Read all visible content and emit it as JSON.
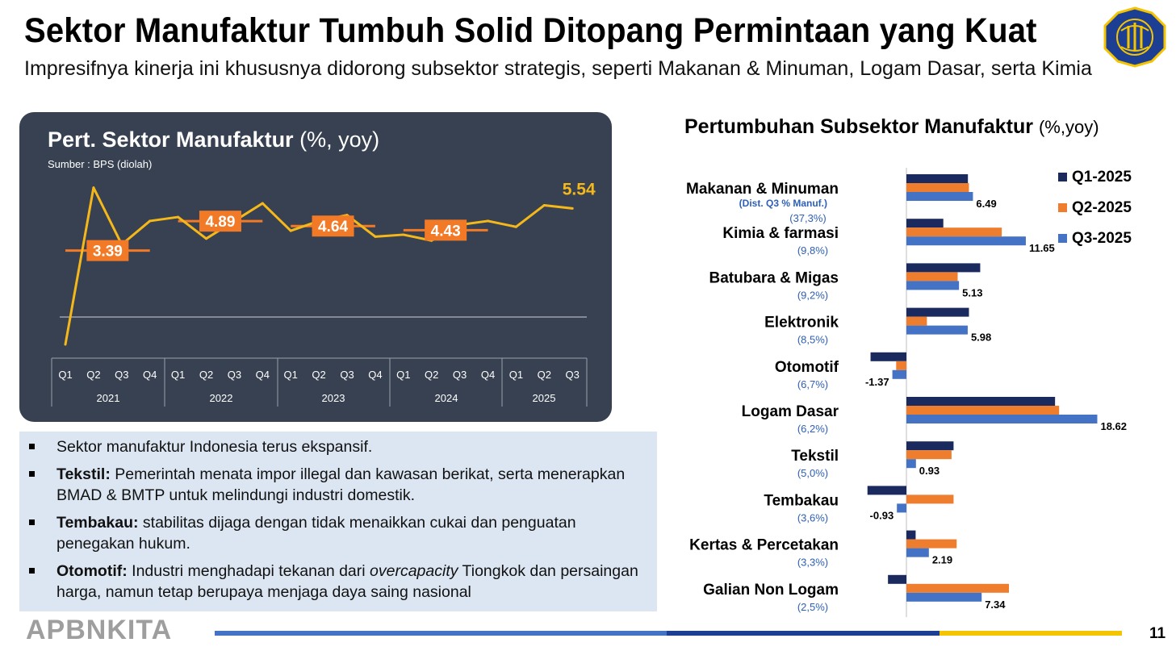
{
  "header": {
    "title": "Sektor Manufaktur Tumbuh Solid Ditopang Permintaan yang Kuat",
    "subtitle": "Impresifnya kinerja ini khususnya didorong subsektor strategis, seperti Makanan & Minuman, Logam Dasar, serta Kimia"
  },
  "left_panel": {
    "title_bold": "Pert. Sektor Manufaktur",
    "title_unit": "(%, yoy)",
    "source": "Sumber : BPS (diolah)"
  },
  "right_panel": {
    "title_bold": "Pertumbuhan Subsektor Manufaktur",
    "title_unit": "(%,yoy)"
  },
  "notes": [
    {
      "bold": "",
      "text": "Sektor manufaktur Indonesia terus ekspansif.",
      "italic": "",
      "text2": ""
    },
    {
      "bold": "Tekstil:",
      "text": " Pemerintah menata impor illegal dan kawasan berikat, serta menerapkan BMAD & BMTP untuk melindungi industri domestik.",
      "italic": "",
      "text2": ""
    },
    {
      "bold": "Tembakau:",
      "text": " stabilitas dijaga dengan tidak menaikkan cukai dan penguatan penegakan hukum.",
      "italic": "",
      "text2": ""
    },
    {
      "bold": "Otomotif:",
      "text": " Industri menghadapi tekanan dari ",
      "italic": "overcapacity",
      "text2": " Tiongkok dan persaingan harga, namun tetap berupaya menjaga daya saing nasional"
    }
  ],
  "footer": {
    "brand": "APBNKITA",
    "page": "11"
  },
  "colors": {
    "panel_bg": "#374151",
    "line": "#f5b81a",
    "avg_label": "#f27a27",
    "q1": "#1a2a5e",
    "q2": "#ef7d2e",
    "q3": "#4472c4",
    "dist_label": "#2e5fb5"
  },
  "chart_data": [
    {
      "type": "line",
      "x_quarters": [
        "Q1",
        "Q2",
        "Q3",
        "Q4",
        "Q1",
        "Q2",
        "Q3",
        "Q4",
        "Q1",
        "Q2",
        "Q3",
        "Q4",
        "Q1",
        "Q2",
        "Q3",
        "Q4",
        "Q1",
        "Q2",
        "Q3"
      ],
      "x_years": [
        "2021",
        "2022",
        "2023",
        "2024",
        "2025"
      ],
      "values": [
        -1.4,
        6.6,
        3.7,
        4.9,
        5.1,
        4.0,
        4.9,
        5.8,
        4.4,
        4.9,
        5.2,
        4.1,
        4.2,
        3.9,
        4.7,
        4.9,
        4.6,
        5.7,
        5.54
      ],
      "annual_averages": [
        {
          "year": "2021",
          "value": 3.39,
          "label": "3.39"
        },
        {
          "year": "2022",
          "value": 4.89,
          "label": "4.89"
        },
        {
          "year": "2023",
          "value": 4.64,
          "label": "4.64"
        },
        {
          "year": "2024",
          "value": 4.43,
          "label": "4.43"
        }
      ],
      "last_label": "5.54",
      "ylim": [
        -2,
        8
      ]
    },
    {
      "type": "bar",
      "orientation": "horizontal",
      "categories": [
        {
          "name": "Makanan & Minuman",
          "share": "(37,3%)",
          "share_note": "(Dist. Q3 % Manuf.)"
        },
        {
          "name": "Kimia & farmasi",
          "share": "(9,8%)"
        },
        {
          "name": "Batubara & Migas",
          "share": "(9,2%)"
        },
        {
          "name": "Elektronik",
          "share": "(8,5%)"
        },
        {
          "name": "Otomotif",
          "share": "(6,7%)"
        },
        {
          "name": "Logam Dasar",
          "share": "(6,2%)"
        },
        {
          "name": "Tekstil",
          "share": "(5,0%)"
        },
        {
          "name": "Tembakau",
          "share": "(3,6%)"
        },
        {
          "name": "Kertas & Percetakan",
          "share": "(3,3%)"
        },
        {
          "name": "Galian Non Logam",
          "share": "(2,5%)"
        }
      ],
      "series": [
        {
          "name": "Q1-2025",
          "values": [
            6.0,
            3.6,
            7.2,
            6.1,
            -3.5,
            14.5,
            4.6,
            -3.8,
            0.9,
            -1.8
          ]
        },
        {
          "name": "Q2-2025",
          "values": [
            6.1,
            9.3,
            5.0,
            2.0,
            -1.0,
            14.9,
            4.4,
            4.6,
            4.9,
            10.0
          ]
        },
        {
          "name": "Q3-2025",
          "values": [
            6.49,
            11.65,
            5.13,
            5.98,
            -1.37,
            18.62,
            0.93,
            -0.93,
            2.19,
            7.34
          ]
        }
      ],
      "q3_labels": [
        "6.49",
        "11.65",
        "5.13",
        "5.98",
        "-1.37",
        "18.62",
        "0.93",
        "-0.93",
        "2.19",
        "7.34"
      ]
    }
  ]
}
